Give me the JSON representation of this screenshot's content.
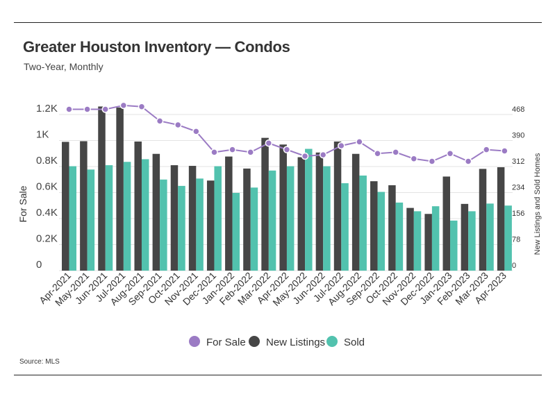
{
  "title": "Greater Houston Inventory — Condos",
  "subtitle": "Two-Year, Monthly",
  "source": "Source: MLS",
  "colors": {
    "for_sale": "#9B7BC4",
    "new_listings": "#464646",
    "sold": "#52C2AE"
  },
  "chart_data": {
    "type": "bar",
    "title": "Greater Houston Inventory — Condos",
    "subtitle": "Two-Year, Monthly",
    "categories": [
      "Apr-2021",
      "May-2021",
      "Jun-2021",
      "Jul-2021",
      "Aug-2021",
      "Sep-2021",
      "Oct-2021",
      "Nov-2021",
      "Dec-2021",
      "Jan-2022",
      "Feb-2022",
      "Mar-2022",
      "Apr-2022",
      "May-2022",
      "Jun-2022",
      "Jul-2022",
      "Aug-2022",
      "Sep-2022",
      "Oct-2022",
      "Nov-2022",
      "Dec-2022",
      "Jan-2023",
      "Feb-2023",
      "Mar-2023",
      "Apr-2023"
    ],
    "ylabel": "For Sale",
    "ylabel_right": "New Listings and Sold Homes",
    "ylim": [
      0,
      1200
    ],
    "ylim_right": [
      0,
      468
    ],
    "yticks": [
      "0",
      "0.2K",
      "0.4K",
      "0.6K",
      "0.8K",
      "1K",
      "1.2K"
    ],
    "yticks_values": [
      0,
      200,
      400,
      600,
      800,
      1000,
      1200
    ],
    "yticks_right": [
      "0",
      "78",
      "156",
      "234",
      "312",
      "390",
      "468"
    ],
    "yticks_right_values": [
      0,
      78,
      156,
      234,
      312,
      390,
      468
    ],
    "legend": [
      "For Sale",
      "New Listings",
      "Sold"
    ],
    "legend_position": "bottom",
    "series": [
      {
        "name": "For Sale",
        "type": "line",
        "axis": "left",
        "values": [
          1240,
          1240,
          1240,
          1270,
          1260,
          1150,
          1120,
          1070,
          910,
          930,
          910,
          980,
          930,
          880,
          890,
          960,
          990,
          900,
          910,
          860,
          840,
          900,
          840,
          930,
          920
        ]
      },
      {
        "name": "New Listings",
        "type": "bar",
        "axis": "right",
        "values": [
          386,
          388,
          492,
          489,
          387,
          350,
          316,
          314,
          270,
          342,
          306,
          398,
          378,
          340,
          354,
          387,
          350,
          268,
          256,
          188,
          170,
          282,
          200,
          305,
          310
        ]
      },
      {
        "name": "Sold",
        "type": "bar",
        "axis": "right",
        "values": [
          313,
          303,
          316,
          326,
          334,
          273,
          254,
          276,
          313,
          233,
          249,
          300,
          313,
          365,
          313,
          262,
          285,
          236,
          204,
          178,
          193,
          150,
          178,
          201,
          195
        ]
      }
    ]
  }
}
